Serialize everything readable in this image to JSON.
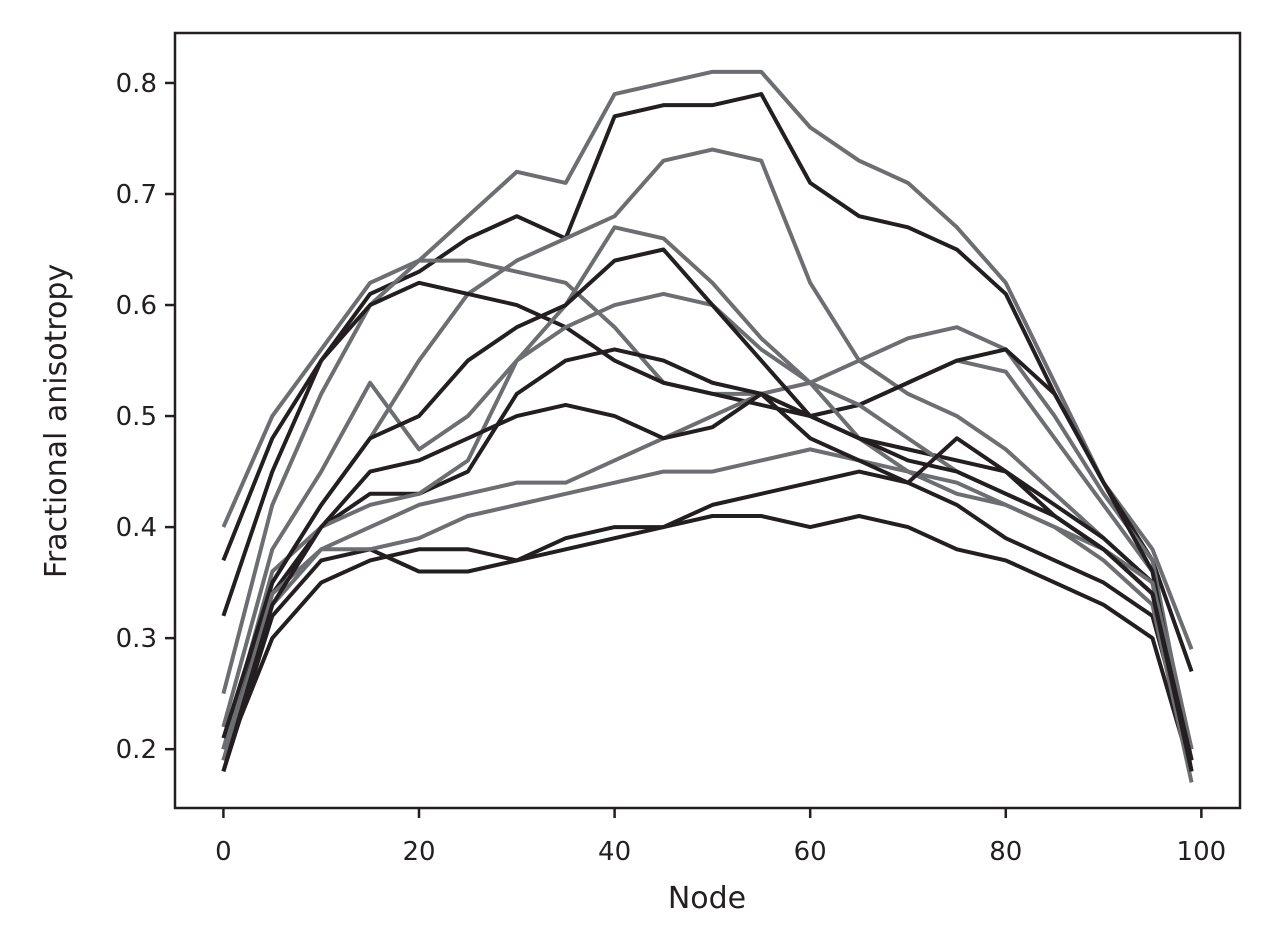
{
  "chart_data": {
    "type": "line",
    "x_label": "Node",
    "y_label": "Fractional anisotropy",
    "x": [
      0,
      5,
      10,
      15,
      20,
      25,
      30,
      35,
      40,
      45,
      50,
      55,
      60,
      65,
      70,
      75,
      80,
      85,
      90,
      95,
      99
    ],
    "xlim": [
      -4.95,
      103.95
    ],
    "ylim": [
      0.147,
      0.845
    ],
    "xticks": [
      0,
      20,
      40,
      60,
      80,
      100
    ],
    "yticks": [
      0.2,
      0.3,
      0.4,
      0.5,
      0.6,
      0.7,
      0.8
    ],
    "series": [
      {
        "color": "#6d6e71",
        "values": [
          0.4,
          0.5,
          0.56,
          0.62,
          0.64,
          0.68,
          0.72,
          0.71,
          0.79,
          0.8,
          0.81,
          0.81,
          0.76,
          0.73,
          0.71,
          0.67,
          0.62,
          0.53,
          0.44,
          0.38,
          0.29
        ]
      },
      {
        "color": "#231f20",
        "values": [
          0.37,
          0.48,
          0.55,
          0.61,
          0.63,
          0.66,
          0.68,
          0.66,
          0.77,
          0.78,
          0.78,
          0.79,
          0.71,
          0.68,
          0.67,
          0.65,
          0.61,
          0.52,
          0.44,
          0.37,
          0.27
        ]
      },
      {
        "color": "#6d6e71",
        "values": [
          0.2,
          0.35,
          0.42,
          0.48,
          0.55,
          0.61,
          0.64,
          0.66,
          0.68,
          0.73,
          0.74,
          0.73,
          0.62,
          0.55,
          0.52,
          0.5,
          0.47,
          0.43,
          0.39,
          0.35,
          0.18
        ]
      },
      {
        "color": "#6d6e71",
        "values": [
          0.25,
          0.42,
          0.52,
          0.6,
          0.64,
          0.64,
          0.63,
          0.62,
          0.58,
          0.53,
          0.52,
          0.52,
          0.5,
          0.51,
          0.53,
          0.55,
          0.54,
          0.48,
          0.42,
          0.36,
          0.2
        ]
      },
      {
        "color": "#231f20",
        "values": [
          0.32,
          0.45,
          0.55,
          0.6,
          0.62,
          0.61,
          0.6,
          0.58,
          0.55,
          0.53,
          0.52,
          0.51,
          0.5,
          0.48,
          0.47,
          0.46,
          0.45,
          0.42,
          0.39,
          0.35,
          0.19
        ]
      },
      {
        "color": "#231f20",
        "values": [
          0.18,
          0.32,
          0.37,
          0.38,
          0.36,
          0.36,
          0.37,
          0.39,
          0.4,
          0.4,
          0.41,
          0.41,
          0.4,
          0.41,
          0.4,
          0.38,
          0.37,
          0.35,
          0.33,
          0.3,
          0.18
        ]
      },
      {
        "color": "#6d6e71",
        "values": [
          0.19,
          0.33,
          0.38,
          0.4,
          0.42,
          0.43,
          0.44,
          0.44,
          0.46,
          0.48,
          0.5,
          0.52,
          0.53,
          0.55,
          0.57,
          0.58,
          0.56,
          0.5,
          0.43,
          0.37,
          0.19
        ]
      },
      {
        "color": "#231f20",
        "values": [
          0.2,
          0.34,
          0.4,
          0.43,
          0.43,
          0.45,
          0.52,
          0.55,
          0.56,
          0.55,
          0.53,
          0.52,
          0.5,
          0.51,
          0.53,
          0.55,
          0.56,
          0.52,
          0.44,
          0.36,
          0.18
        ]
      },
      {
        "color": "#6d6e71",
        "values": [
          0.22,
          0.38,
          0.45,
          0.53,
          0.47,
          0.5,
          0.55,
          0.58,
          0.6,
          0.61,
          0.6,
          0.56,
          0.53,
          0.51,
          0.48,
          0.45,
          0.43,
          0.41,
          0.38,
          0.35,
          0.2
        ]
      },
      {
        "color": "#231f20",
        "values": [
          0.19,
          0.3,
          0.35,
          0.37,
          0.38,
          0.38,
          0.37,
          0.38,
          0.39,
          0.4,
          0.42,
          0.43,
          0.44,
          0.45,
          0.44,
          0.42,
          0.39,
          0.37,
          0.35,
          0.32,
          0.19
        ]
      },
      {
        "color": "#6d6e71",
        "values": [
          0.2,
          0.36,
          0.4,
          0.42,
          0.43,
          0.46,
          0.55,
          0.6,
          0.67,
          0.66,
          0.62,
          0.57,
          0.53,
          0.48,
          0.45,
          0.43,
          0.42,
          0.4,
          0.38,
          0.34,
          0.2
        ]
      },
      {
        "color": "#231f20",
        "values": [
          0.21,
          0.35,
          0.42,
          0.48,
          0.5,
          0.55,
          0.58,
          0.6,
          0.64,
          0.65,
          0.6,
          0.55,
          0.5,
          0.48,
          0.46,
          0.45,
          0.43,
          0.41,
          0.38,
          0.34,
          0.19
        ]
      },
      {
        "color": "#6d6e71",
        "values": [
          0.19,
          0.34,
          0.38,
          0.38,
          0.39,
          0.41,
          0.42,
          0.43,
          0.44,
          0.45,
          0.45,
          0.46,
          0.47,
          0.46,
          0.45,
          0.44,
          0.42,
          0.4,
          0.37,
          0.33,
          0.17
        ]
      },
      {
        "color": "#231f20",
        "values": [
          0.18,
          0.33,
          0.4,
          0.45,
          0.46,
          0.48,
          0.5,
          0.51,
          0.5,
          0.48,
          0.49,
          0.52,
          0.48,
          0.46,
          0.44,
          0.48,
          0.45,
          0.41,
          0.38,
          0.34,
          0.18
        ]
      }
    ]
  }
}
